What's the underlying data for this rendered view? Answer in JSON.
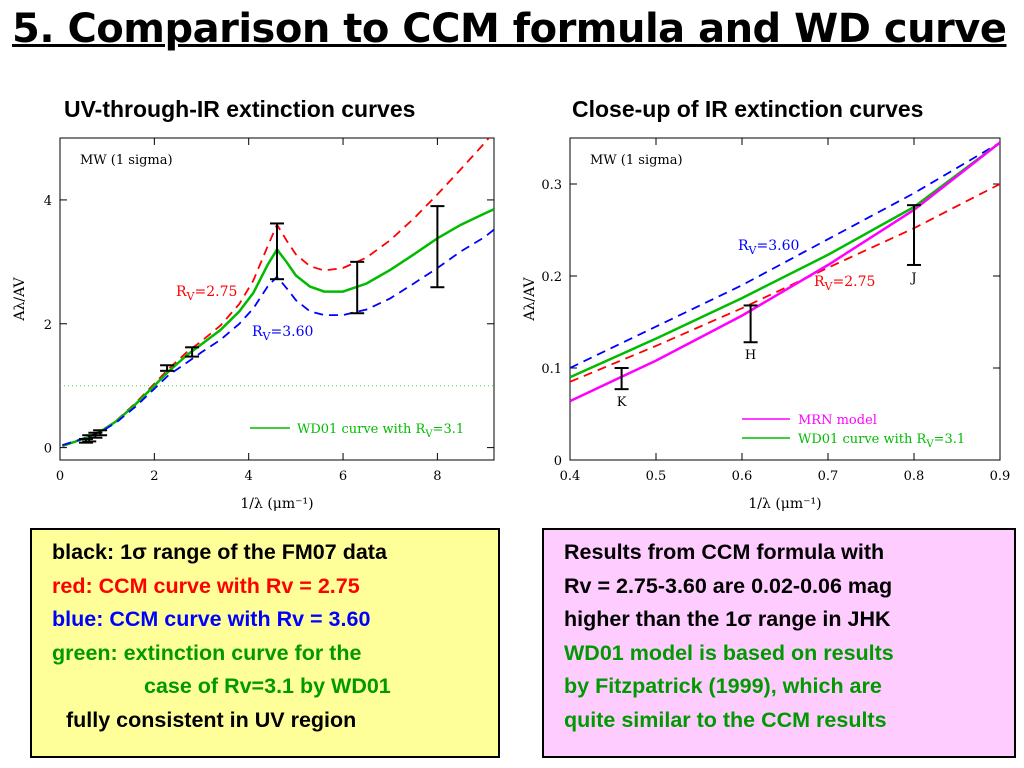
{
  "title": "5. Comparison to CCM formula and WD curve",
  "colors": {
    "red": "#ff0000",
    "blue": "#0000ff",
    "green": "#00bb00",
    "magenta": "#ff00ff",
    "dark_green": "#009900",
    "yellow_box": "#ffff99",
    "pink_box": "#ffccff"
  },
  "left_panel": {
    "heading": "UV-through-IR extinction curves"
  },
  "right_panel": {
    "heading": "Close-up of IR extinction curves"
  },
  "chart_data": [
    {
      "type": "line",
      "title": "",
      "xlabel": "1/λ (μm⁻¹)",
      "ylabel": "Aλ/AV",
      "xlim": [
        0,
        9.2
      ],
      "ylim": [
        -0.2,
        5.0
      ],
      "xticks": [
        0,
        2,
        4,
        6,
        8
      ],
      "yticks": [
        0,
        2,
        4
      ],
      "annotation": "MW (1 sigma)",
      "legend_entry": "WD01 curve with RV=3.1",
      "label_red": "RV=2.75",
      "label_blue": "RV=3.60",
      "reference_line_y": 1.0,
      "series": [
        {
          "name": "RV=2.75",
          "style": "dashed",
          "color": "#ff0000",
          "x": [
            0.05,
            0.3,
            0.6,
            0.9,
            1.2,
            1.6,
            2.0,
            2.3,
            2.7,
            3.0,
            3.4,
            3.8,
            4.1,
            4.4,
            4.6,
            4.8,
            5.0,
            5.3,
            5.6,
            6.0,
            6.5,
            7.0,
            7.5,
            8.0,
            8.5,
            9.0,
            9.2
          ],
          "y": [
            0.02,
            0.09,
            0.17,
            0.28,
            0.44,
            0.72,
            1.03,
            1.27,
            1.55,
            1.72,
            1.97,
            2.32,
            2.7,
            3.25,
            3.6,
            3.35,
            3.12,
            2.93,
            2.86,
            2.9,
            3.07,
            3.35,
            3.7,
            4.09,
            4.5,
            4.92,
            5.1
          ]
        },
        {
          "name": "WD01 RV=3.1",
          "style": "solid",
          "color": "#00bb00",
          "x": [
            0.05,
            0.3,
            0.6,
            0.9,
            1.2,
            1.6,
            2.0,
            2.3,
            2.7,
            3.0,
            3.4,
            3.8,
            4.1,
            4.4,
            4.6,
            4.8,
            5.0,
            5.3,
            5.6,
            6.0,
            6.5,
            7.0,
            7.5,
            8.0,
            8.5,
            9.0,
            9.2
          ],
          "y": [
            0.03,
            0.09,
            0.17,
            0.28,
            0.43,
            0.7,
            1.0,
            1.23,
            1.5,
            1.67,
            1.9,
            2.2,
            2.5,
            2.95,
            3.2,
            3.0,
            2.78,
            2.6,
            2.52,
            2.52,
            2.65,
            2.87,
            3.12,
            3.38,
            3.6,
            3.78,
            3.85
          ]
        },
        {
          "name": "RV=3.60",
          "style": "dashed",
          "color": "#0000ff",
          "x": [
            0.05,
            0.3,
            0.6,
            0.9,
            1.2,
            1.6,
            2.0,
            2.3,
            2.7,
            3.0,
            3.4,
            3.8,
            4.1,
            4.4,
            4.6,
            4.8,
            5.0,
            5.3,
            5.6,
            6.0,
            6.5,
            7.0,
            7.5,
            8.0,
            8.5,
            9.0,
            9.2
          ],
          "y": [
            0.04,
            0.1,
            0.17,
            0.27,
            0.41,
            0.66,
            0.95,
            1.17,
            1.38,
            1.54,
            1.74,
            2.0,
            2.25,
            2.6,
            2.76,
            2.58,
            2.38,
            2.2,
            2.14,
            2.14,
            2.23,
            2.41,
            2.65,
            2.9,
            3.17,
            3.4,
            3.52
          ]
        }
      ],
      "error_bars": [
        {
          "x": 0.55,
          "low": 0.08,
          "high": 0.14
        },
        {
          "x": 0.62,
          "low": 0.1,
          "high": 0.2
        },
        {
          "x": 0.75,
          "low": 0.16,
          "high": 0.24
        },
        {
          "x": 0.85,
          "low": 0.2,
          "high": 0.28
        },
        {
          "x": 2.27,
          "low": 1.24,
          "high": 1.33
        },
        {
          "x": 2.8,
          "low": 1.47,
          "high": 1.62
        },
        {
          "x": 4.6,
          "low": 2.72,
          "high": 3.62
        },
        {
          "x": 6.3,
          "low": 2.17,
          "high": 3.0
        },
        {
          "x": 8.0,
          "low": 2.59,
          "high": 3.9
        }
      ]
    },
    {
      "type": "line",
      "title": "",
      "xlabel": "1/λ (μm⁻¹)",
      "ylabel": "Aλ/AV",
      "xlim": [
        0.4,
        0.9
      ],
      "ylim": [
        0,
        0.35
      ],
      "xticks": [
        0.4,
        0.5,
        0.6,
        0.7,
        0.8,
        0.9
      ],
      "yticks": [
        0,
        0.1,
        0.2,
        0.3
      ],
      "annotation": "MW (1 sigma)",
      "label_red": "RV=2.75",
      "label_blue": "RV=3.60",
      "legend": [
        "MRN model",
        "WD01 curve with RV=3.1"
      ],
      "series": [
        {
          "name": "RV=3.60",
          "style": "dashed",
          "color": "#0000ff",
          "x": [
            0.4,
            0.5,
            0.6,
            0.7,
            0.8,
            0.9
          ],
          "y": [
            0.1,
            0.145,
            0.19,
            0.24,
            0.29,
            0.345
          ]
        },
        {
          "name": "WD01 RV=3.1",
          "style": "solid",
          "color": "#00bb00",
          "x": [
            0.4,
            0.5,
            0.6,
            0.7,
            0.8,
            0.9
          ],
          "y": [
            0.09,
            0.132,
            0.176,
            0.223,
            0.275,
            0.345
          ]
        },
        {
          "name": "RV=2.75",
          "style": "dashed",
          "color": "#ff0000",
          "x": [
            0.4,
            0.5,
            0.6,
            0.7,
            0.8,
            0.9
          ],
          "y": [
            0.085,
            0.124,
            0.165,
            0.209,
            0.252,
            0.3
          ]
        },
        {
          "name": "MRN model",
          "style": "solid",
          "color": "#ff00ff",
          "x": [
            0.4,
            0.5,
            0.6,
            0.7,
            0.8,
            0.9
          ],
          "y": [
            0.064,
            0.108,
            0.157,
            0.212,
            0.272,
            0.345
          ]
        }
      ],
      "error_bars": [
        {
          "label": "K",
          "x": 0.46,
          "low": 0.077,
          "high": 0.1
        },
        {
          "label": "H",
          "x": 0.61,
          "low": 0.128,
          "high": 0.168
        },
        {
          "label": "J",
          "x": 0.8,
          "low": 0.212,
          "high": 0.277
        }
      ]
    }
  ],
  "left_box": [
    {
      "text": "black: 1σ range of the FM07 data",
      "color": "#000000"
    },
    {
      "text": "red: CCM curve with Rv = 2.75",
      "color": "#ff0000"
    },
    {
      "text": "blue: CCM curve with Rv = 3.60",
      "color": "#0000ff"
    },
    {
      "text": "green: extinction curve for the",
      "color": "#009900"
    },
    {
      "text": "case of Rv=3.1 by WD01",
      "color": "#009900"
    },
    {
      "text": "fully consistent in UV region",
      "color": "#000000"
    }
  ],
  "right_box": [
    {
      "text": "Results from CCM formula with",
      "color": "#000000"
    },
    {
      "text": "Rv = 2.75-3.60 are 0.02-0.06 mag",
      "color": "#000000"
    },
    {
      "text": "higher than the 1σ range in JHK",
      "color": "#000000"
    },
    {
      "text": "WD01 model is based on results",
      "color": "#009900"
    },
    {
      "text": "by Fitzpatrick (1999), which are",
      "color": "#009900"
    },
    {
      "text": "quite similar to the CCM results",
      "color": "#009900"
    }
  ]
}
